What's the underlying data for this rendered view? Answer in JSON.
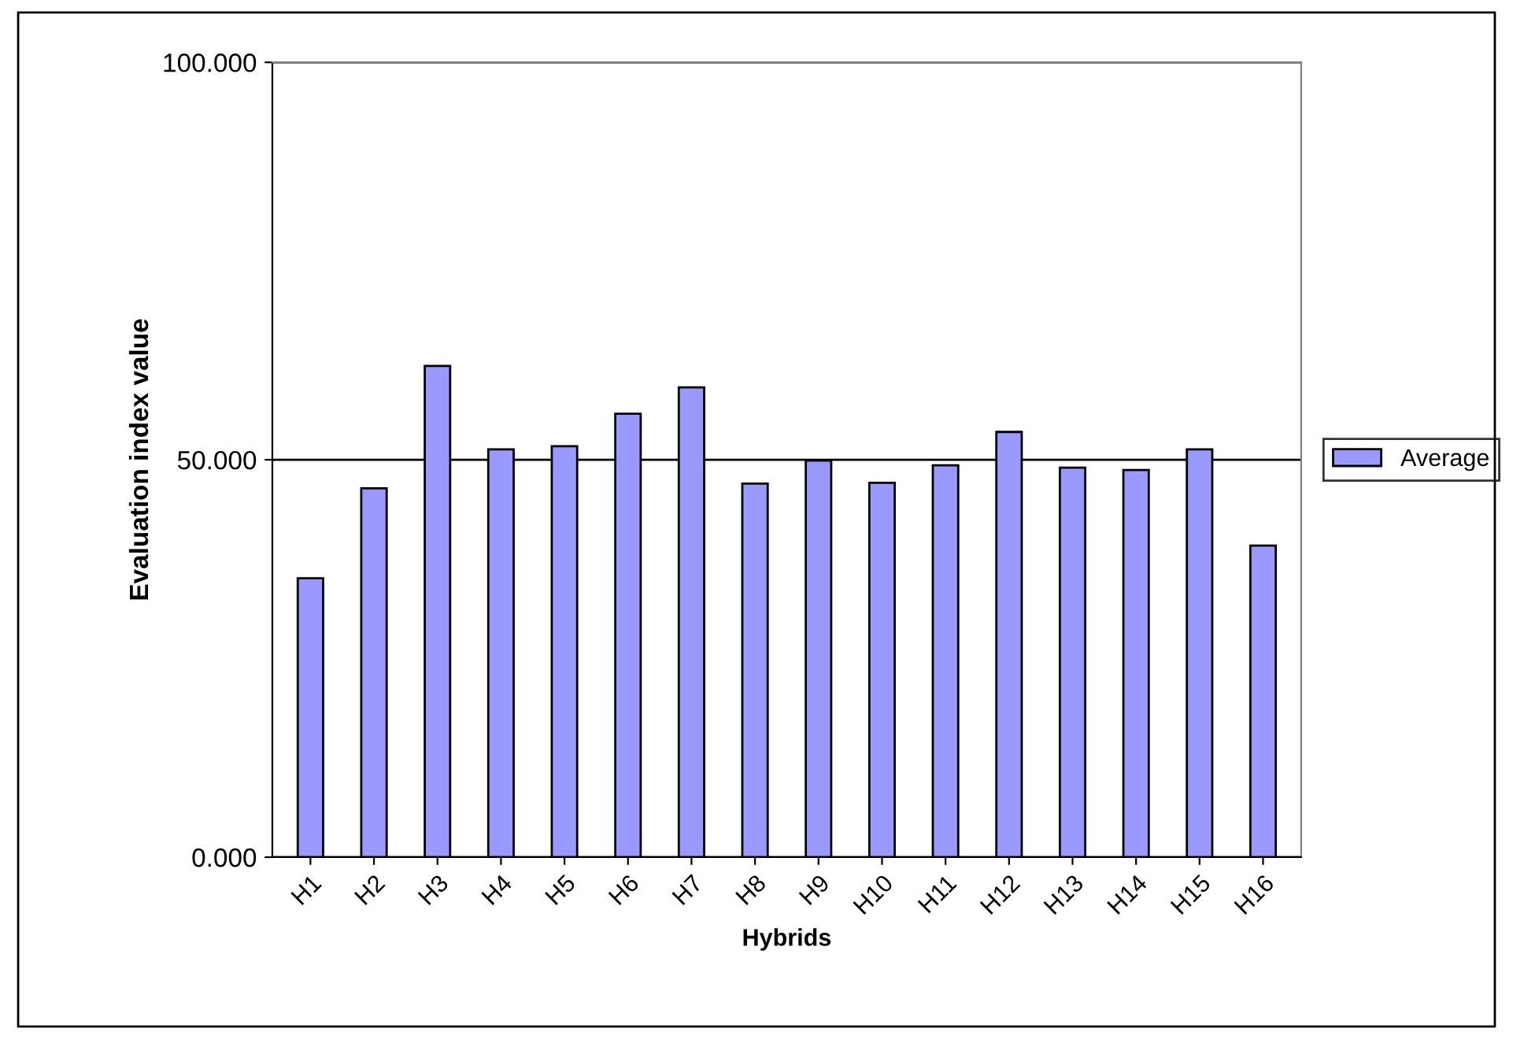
{
  "chart_data": {
    "type": "bar",
    "xlabel": "Hybrids",
    "ylabel": "Evaluation index value",
    "categories": [
      "H1",
      "H2",
      "H3",
      "H4",
      "H5",
      "H6",
      "H7",
      "H8",
      "H9",
      "H10",
      "H11",
      "H12",
      "H13",
      "H14",
      "H15",
      "H16"
    ],
    "series": [
      {
        "name": "Average",
        "color": "#9999ff",
        "values": [
          35.1,
          46.4,
          61.8,
          51.3,
          51.7,
          55.8,
          59.1,
          47.0,
          49.9,
          47.1,
          49.3,
          53.5,
          49.0,
          48.7,
          51.3,
          39.2
        ]
      }
    ],
    "ylim": [
      0,
      100
    ],
    "yticks": [
      {
        "value": 0,
        "label": "0.000"
      },
      {
        "value": 50,
        "label": "50.000"
      },
      {
        "value": 100,
        "label": "100.000"
      }
    ],
    "grid": "y",
    "legend": "right"
  }
}
